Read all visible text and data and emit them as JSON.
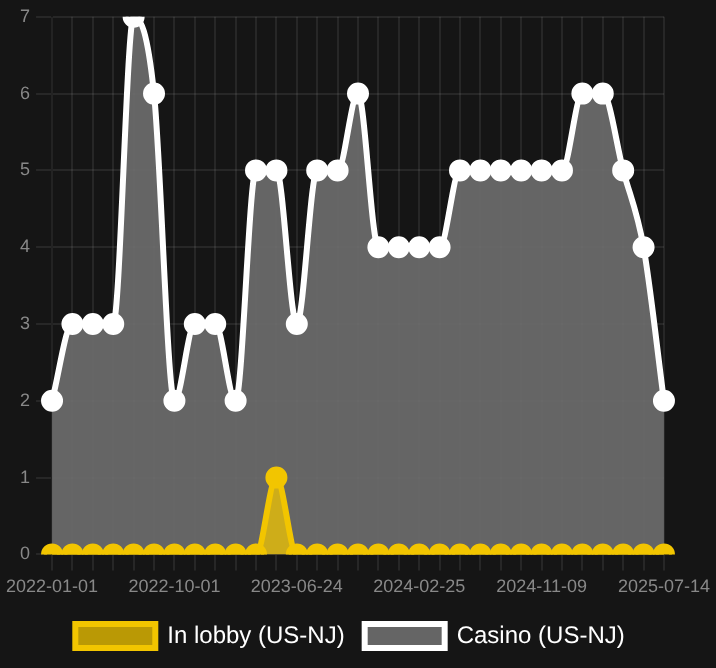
{
  "chart_data": {
    "type": "area",
    "categories": [
      "2022-01-01",
      null,
      null,
      null,
      null,
      null,
      "2022-10-01",
      null,
      null,
      null,
      null,
      null,
      "2023-06-24",
      null,
      null,
      null,
      null,
      null,
      "2024-02-25",
      null,
      null,
      null,
      null,
      null,
      "2024-11-09",
      null,
      null,
      null,
      null,
      null,
      "2025-07-14"
    ],
    "series": [
      {
        "name": "In lobby (US-NJ)",
        "color": "#f2c500",
        "values": [
          0,
          0,
          0,
          0,
          0,
          0,
          0,
          0,
          0,
          0,
          0,
          1,
          0,
          0,
          0,
          0,
          0,
          0,
          0,
          0,
          0,
          0,
          0,
          0,
          0,
          0,
          0,
          0,
          0,
          0,
          0
        ]
      },
      {
        "name": "Casino (US-NJ)",
        "color": "#ffffff",
        "values": [
          2,
          3,
          3,
          3,
          7,
          6,
          2,
          3,
          3,
          2,
          5,
          5,
          3,
          5,
          5,
          6,
          4,
          4,
          4,
          4,
          5,
          5,
          5,
          5,
          5,
          5,
          6,
          6,
          5,
          4,
          2
        ]
      }
    ],
    "ylim": [
      0,
      7
    ],
    "yticks": [
      0,
      1,
      2,
      3,
      4,
      5,
      6,
      7
    ],
    "grid": true,
    "legend": "bottom",
    "marker": "circle"
  }
}
